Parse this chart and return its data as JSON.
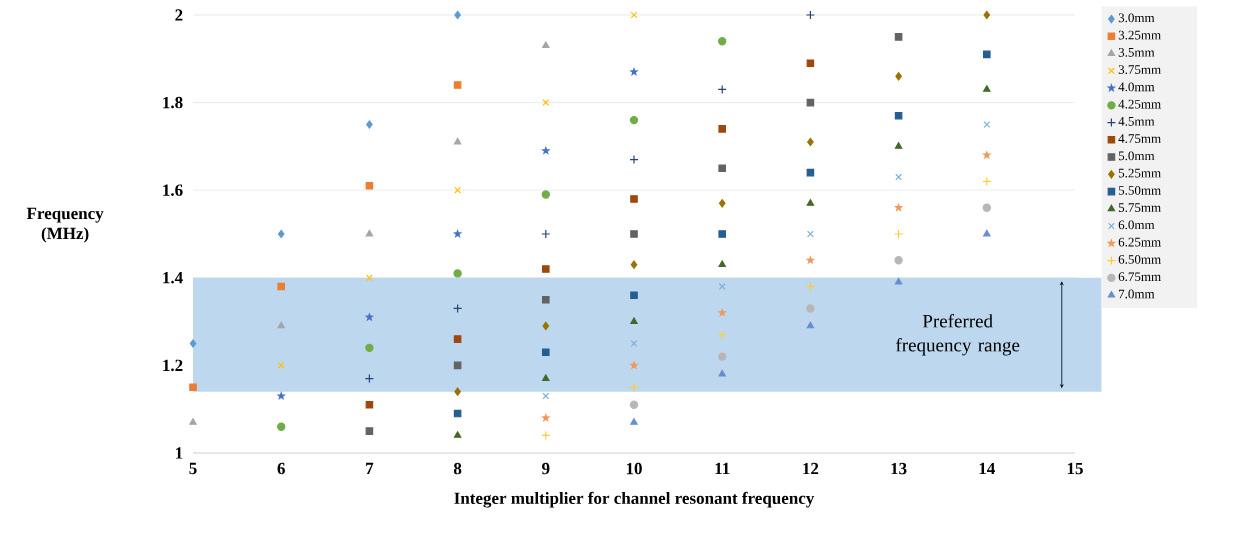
{
  "chart_data": {
    "type": "scatter",
    "xlabel": "Integer multiplier for channel resonant frequency",
    "ylabel": "Frequency (MHz)",
    "xlim": [
      5,
      15
    ],
    "ylim": [
      1,
      2
    ],
    "xticks": [
      5,
      6,
      7,
      8,
      9,
      10,
      11,
      12,
      13,
      14,
      15
    ],
    "yticks": [
      1,
      1.2,
      1.4,
      1.6,
      1.8,
      2
    ],
    "grid": "y",
    "legend": "right",
    "bands": [
      {
        "axis": "y",
        "from": 1.14,
        "to": 1.4,
        "label": "Preferred frequency range",
        "color": "#bdd7ee"
      }
    ],
    "series": [
      {
        "name": "3.0mm",
        "color": "#5b9bd5",
        "marker": "diamond",
        "x": [
          5,
          6,
          7,
          8
        ],
        "values": [
          1.25,
          1.5,
          1.75,
          2.0
        ]
      },
      {
        "name": "3.25mm",
        "color": "#ed7d31",
        "marker": "square",
        "x": [
          5,
          6,
          7,
          8
        ],
        "values": [
          1.15,
          1.38,
          1.61,
          1.84
        ]
      },
      {
        "name": "3.5mm",
        "color": "#a5a5a5",
        "marker": "triangle",
        "x": [
          5,
          6,
          7,
          8,
          9
        ],
        "values": [
          1.07,
          1.29,
          1.5,
          1.71,
          1.93
        ]
      },
      {
        "name": "3.75mm",
        "color": "#ffc000",
        "marker": "cross",
        "x": [
          6,
          7,
          8,
          9,
          10
        ],
        "values": [
          1.2,
          1.4,
          1.6,
          1.8,
          2.0
        ]
      },
      {
        "name": "4.0mm",
        "color": "#4472c4",
        "marker": "star",
        "x": [
          6,
          7,
          8,
          9,
          10
        ],
        "values": [
          1.13,
          1.31,
          1.5,
          1.69,
          1.87
        ]
      },
      {
        "name": "4.25mm",
        "color": "#70ad47",
        "marker": "circle",
        "x": [
          6,
          7,
          8,
          9,
          10,
          11
        ],
        "values": [
          1.06,
          1.24,
          1.41,
          1.59,
          1.76,
          1.94
        ]
      },
      {
        "name": "4.5mm",
        "color": "#264478",
        "marker": "plus",
        "x": [
          7,
          8,
          9,
          10,
          11,
          12
        ],
        "values": [
          1.17,
          1.33,
          1.5,
          1.67,
          1.83,
          2.0
        ]
      },
      {
        "name": "4.75mm",
        "color": "#9e480e",
        "marker": "square",
        "x": [
          7,
          8,
          9,
          10,
          11,
          12
        ],
        "values": [
          1.11,
          1.26,
          1.42,
          1.58,
          1.74,
          1.89
        ]
      },
      {
        "name": "5.0mm",
        "color": "#636363",
        "marker": "square",
        "x": [
          7,
          8,
          9,
          10,
          11,
          12,
          13
        ],
        "values": [
          1.05,
          1.2,
          1.35,
          1.5,
          1.65,
          1.8,
          1.95
        ]
      },
      {
        "name": "5.25mm",
        "color": "#997300",
        "marker": "diamond",
        "x": [
          8,
          9,
          10,
          11,
          12,
          13,
          14
        ],
        "values": [
          1.14,
          1.29,
          1.43,
          1.57,
          1.71,
          1.86,
          2.0
        ]
      },
      {
        "name": "5.50mm",
        "color": "#255e91",
        "marker": "square",
        "x": [
          8,
          9,
          10,
          11,
          12,
          13,
          14
        ],
        "values": [
          1.09,
          1.23,
          1.36,
          1.5,
          1.64,
          1.77,
          1.91
        ]
      },
      {
        "name": "5.75mm",
        "color": "#43682b",
        "marker": "triangle",
        "x": [
          8,
          9,
          10,
          11,
          12,
          13,
          14
        ],
        "values": [
          1.04,
          1.17,
          1.3,
          1.43,
          1.57,
          1.7,
          1.83
        ]
      },
      {
        "name": "6.0mm",
        "color": "#7cafdd",
        "marker": "cross",
        "x": [
          9,
          10,
          11,
          12,
          13,
          14
        ],
        "values": [
          1.13,
          1.25,
          1.38,
          1.5,
          1.63,
          1.75
        ]
      },
      {
        "name": "6.25mm",
        "color": "#f1975a",
        "marker": "star",
        "x": [
          9,
          10,
          11,
          12,
          13,
          14
        ],
        "values": [
          1.08,
          1.2,
          1.32,
          1.44,
          1.56,
          1.68
        ]
      },
      {
        "name": "6.50mm",
        "color": "#ffcd33",
        "marker": "plus",
        "x": [
          9,
          10,
          11,
          12,
          13,
          14
        ],
        "values": [
          1.04,
          1.15,
          1.27,
          1.38,
          1.5,
          1.62
        ]
      },
      {
        "name": "6.75mm",
        "color": "#b7b7b7",
        "marker": "circle",
        "x": [
          10,
          11,
          12,
          13,
          14
        ],
        "values": [
          1.11,
          1.22,
          1.33,
          1.44,
          1.56
        ]
      },
      {
        "name": "7.0mm",
        "color": "#698ed0",
        "marker": "triangle",
        "x": [
          10,
          11,
          12,
          13,
          14
        ],
        "values": [
          1.07,
          1.18,
          1.29,
          1.39,
          1.5
        ]
      }
    ]
  }
}
